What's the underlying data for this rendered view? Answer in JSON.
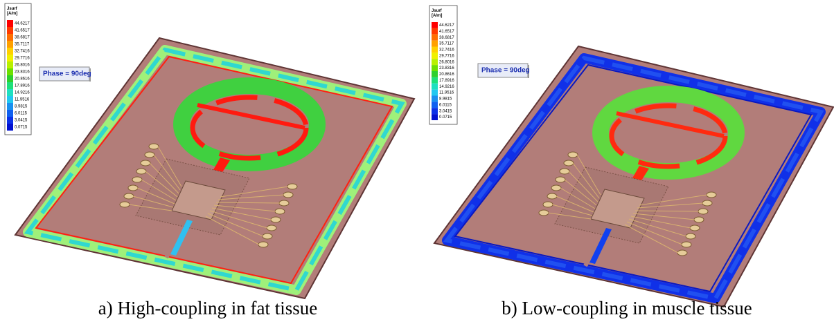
{
  "panels": [
    {
      "legend_title": "Jsurf",
      "legend_unit": "[A/m]",
      "legend_values": [
        "44.6217",
        "41.6517",
        "38.6817",
        "35.7117",
        "32.7416",
        "29.7716",
        "26.8016",
        "23.8316",
        "20.8616",
        "17.8916",
        "14.9216",
        "11.9516",
        "8.9815",
        "6.0115",
        "3.0415",
        "0.0715"
      ],
      "phase_label": "Phase = 90deg",
      "caption": "a) High-coupling in fat tissue"
    },
    {
      "legend_title": "Jsurf",
      "legend_unit": "[A/m]",
      "legend_values": [
        "44.6217",
        "41.6517",
        "38.6817",
        "35.7117",
        "32.7416",
        "29.7716",
        "26.8016",
        "23.8316",
        "20.8616",
        "17.8916",
        "14.9216",
        "11.9516",
        "8.9815",
        "6.0115",
        "3.0415",
        "0.0715"
      ],
      "phase_label": "Phase = 90deg",
      "caption": "b) Low-coupling in muscle tissue"
    }
  ]
}
